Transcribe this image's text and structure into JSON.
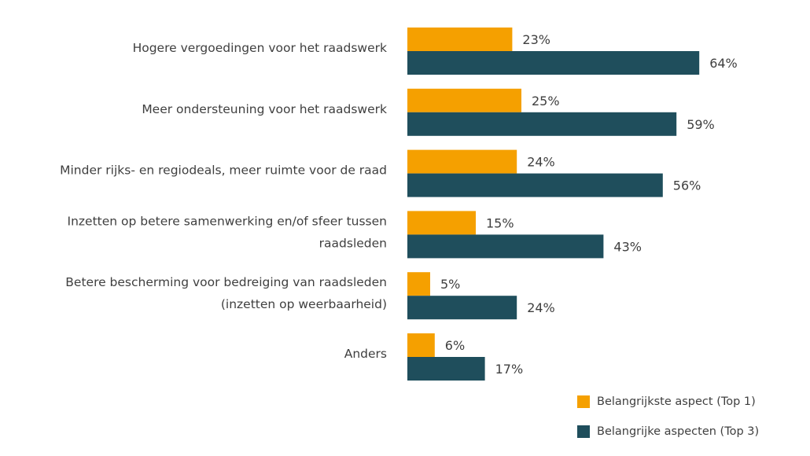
{
  "chart_data": {
    "type": "bar",
    "orientation": "horizontal",
    "categories": [
      [
        "Hogere vergoedingen voor het raadswerk"
      ],
      [
        "Meer ondersteuning voor het raadswerk"
      ],
      [
        "Minder rijks- en regiodeals, meer ruimte voor de raad"
      ],
      [
        "Inzetten op betere samenwerking en/of sfeer tussen",
        "raadsleden"
      ],
      [
        "Betere bescherming voor bedreiging van raadsleden",
        "(inzetten op weerbaarheid)"
      ],
      [
        "Anders"
      ]
    ],
    "series": [
      {
        "name": "Belangrijkste aspect (Top 1)",
        "color": "#f5a000",
        "values": [
          23,
          25,
          24,
          15,
          5,
          6
        ]
      },
      {
        "name": "Belangrijke aspecten (Top 3)",
        "color": "#1f4e5c",
        "values": [
          64,
          59,
          56,
          43,
          24,
          17
        ]
      }
    ],
    "value_suffix": "%",
    "xlim": [
      0,
      100
    ],
    "grid": false,
    "legend_position": "bottom-right"
  }
}
